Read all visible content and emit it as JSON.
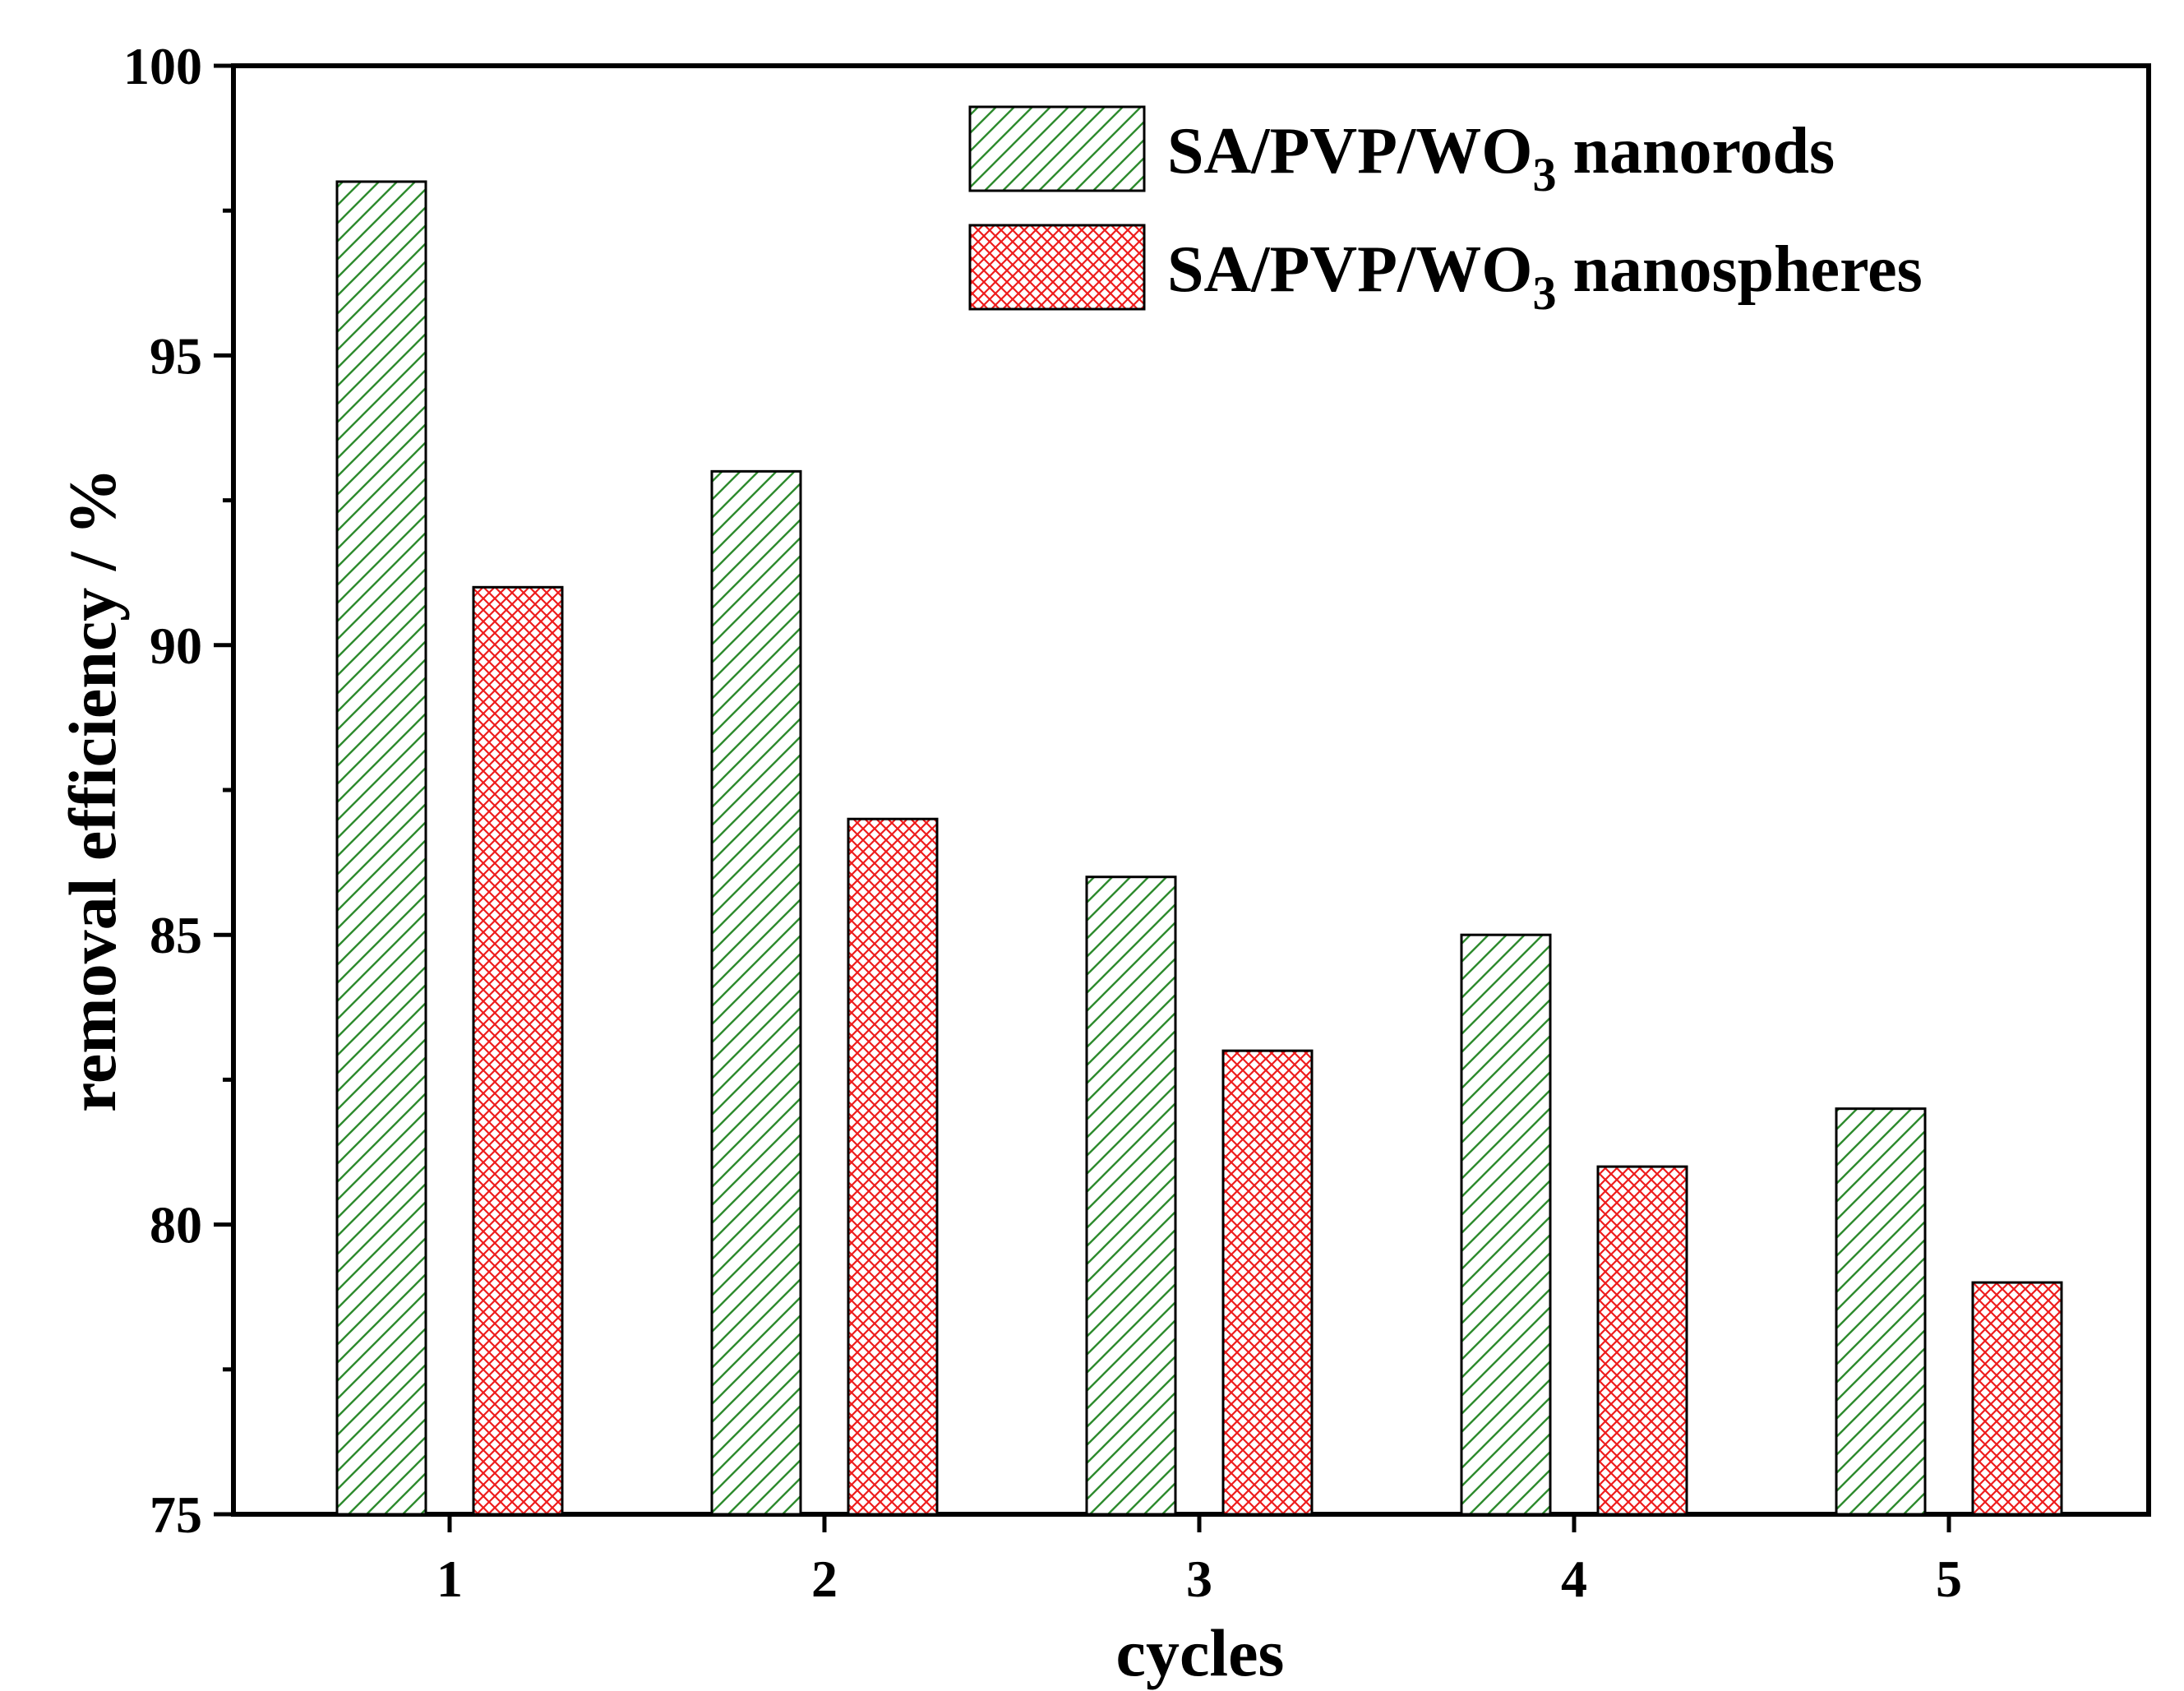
{
  "chart_data": {
    "type": "bar",
    "title": "",
    "xlabel": "cycles",
    "ylabel": "removal efficiency / %",
    "categories": [
      "1",
      "2",
      "3",
      "4",
      "5"
    ],
    "ylim": [
      75,
      100
    ],
    "yticks": [
      75,
      80,
      85,
      90,
      95,
      100
    ],
    "grid": false,
    "legend_position": "top-right",
    "series": [
      {
        "name": "SA/PVP/WO3 nanorods",
        "legend_prefix": "SA/PVP/WO",
        "legend_subscript": "3",
        "legend_suffix": " nanorods",
        "values": [
          98,
          93,
          86,
          85,
          82
        ],
        "color": "#2e8b2e",
        "pattern": "diagonal-hatch"
      },
      {
        "name": "SA/PVP/WO3 nanospheres",
        "legend_prefix": "SA/PVP/WO",
        "legend_subscript": "3",
        "legend_suffix": " nanospheres",
        "values": [
          91,
          87,
          83,
          81,
          79
        ],
        "color": "#e8201e",
        "pattern": "crosshatch"
      }
    ]
  }
}
